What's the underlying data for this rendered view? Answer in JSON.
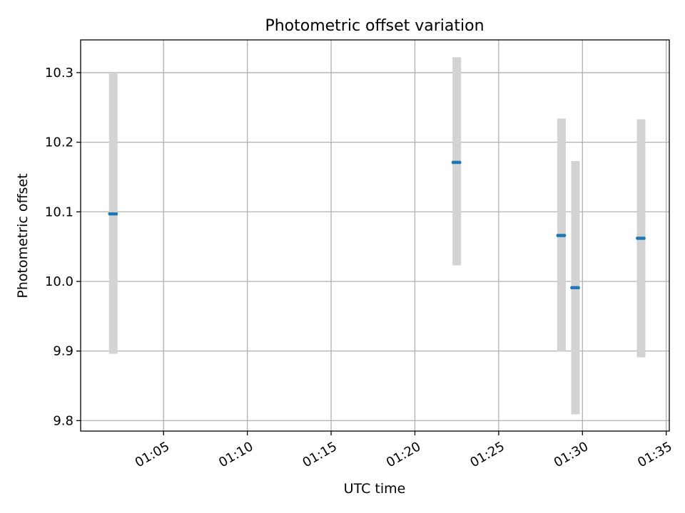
{
  "chart_data": {
    "type": "scatter",
    "title": "Photometric offset variation",
    "xlabel": "UTC time",
    "ylabel": "Photometric offset",
    "x_ticks": [
      "01:05",
      "01:10",
      "01:15",
      "01:20",
      "01:25",
      "01:30",
      "01:35"
    ],
    "y_ticks": [
      "9.8",
      "9.9",
      "10.0",
      "10.1",
      "10.2",
      "10.3"
    ],
    "xlim": [
      "01:00:03",
      "01:35:11"
    ],
    "ylim": [
      9.785,
      10.347
    ],
    "grid": true,
    "points": [
      {
        "x": "01:02:00",
        "y": 10.097,
        "err_low": 9.896,
        "err_high": 10.3
      },
      {
        "x": "01:22:30",
        "y": 10.171,
        "err_low": 10.023,
        "err_high": 10.322
      },
      {
        "x": "01:28:45",
        "y": 10.066,
        "err_low": 9.899,
        "err_high": 10.234
      },
      {
        "x": "01:29:35",
        "y": 9.991,
        "err_low": 9.809,
        "err_high": 10.173
      },
      {
        "x": "01:33:30",
        "y": 10.062,
        "err_low": 9.891,
        "err_high": 10.233
      }
    ],
    "colors": {
      "marker": "#1f77b4",
      "errorbar": "#d3d3d3",
      "grid": "#b0b0b0"
    }
  }
}
